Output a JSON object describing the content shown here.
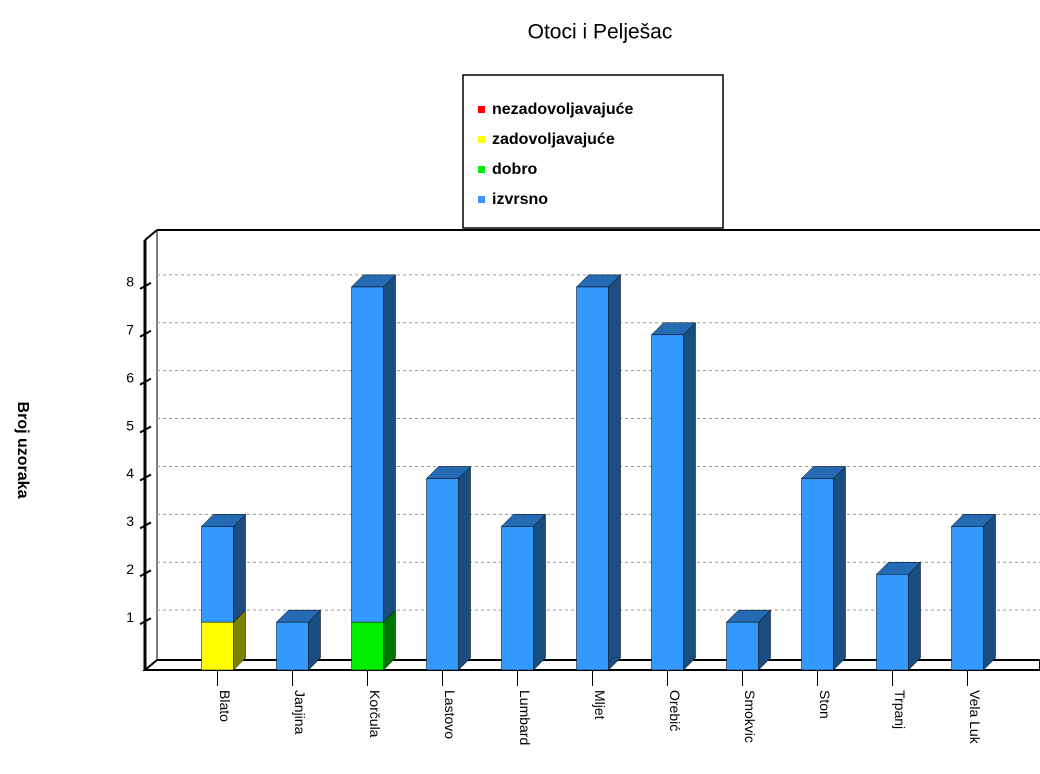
{
  "chart_data": {
    "type": "bar3d_stacked",
    "title": "Otoci i Pelješac",
    "y_label": "Broj uzoraka",
    "categories": [
      "Blato",
      "Janjina",
      "Korčula",
      "Lastovo",
      "Lumbard",
      "Mljet",
      "Orebić",
      "Smokvic",
      "Ston",
      "Trpanj",
      "Vela Luk"
    ],
    "series": [
      {
        "name": "nezadovoljavajuće",
        "color": "#ff0000",
        "values": [
          0,
          0,
          0,
          0,
          0,
          0,
          0,
          0,
          0,
          0,
          0
        ]
      },
      {
        "name": "zadovoljavajuće",
        "color": "#ffff00",
        "values": [
          1,
          0,
          0,
          0,
          0,
          0,
          0,
          0,
          0,
          0,
          0
        ]
      },
      {
        "name": "dobro",
        "color": "#00ee00",
        "values": [
          0,
          0,
          1,
          0,
          0,
          0,
          0,
          0,
          0,
          0,
          0
        ]
      },
      {
        "name": "izvrsno",
        "color": "#3399ff",
        "values": [
          2,
          1,
          7,
          4,
          3,
          8,
          7,
          1,
          4,
          2,
          3
        ]
      }
    ],
    "ylim": [
      0,
      9
    ],
    "yticks": [
      1,
      2,
      3,
      4,
      5,
      6,
      7,
      8
    ],
    "grid": true,
    "stacked": true
  }
}
